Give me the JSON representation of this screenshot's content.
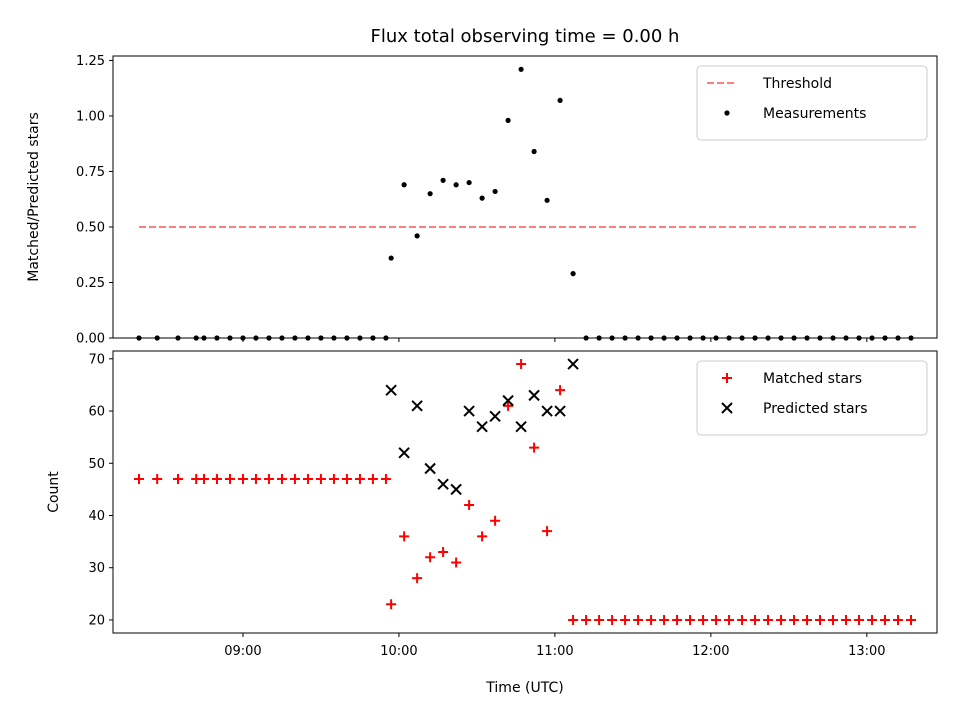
{
  "chart_data": {
    "title": "Flux total observing time = 0.00 h",
    "xlabel": "Time (UTC)",
    "x_ticks": [
      "09:00",
      "10:00",
      "11:00",
      "12:00",
      "13:00"
    ],
    "xlim": [
      "08:10",
      "13:27"
    ],
    "panels": [
      {
        "type": "scatter",
        "ylabel": "Matched/Predicted stars",
        "ylim": [
          0,
          1.27
        ],
        "y_ticks": [
          "0.00",
          "0.25",
          "0.50",
          "0.75",
          "1.00",
          "1.25"
        ],
        "legend_position": "top-right",
        "series": [
          {
            "name": "Threshold",
            "style": "dashed-line",
            "color": "#ff7f7f",
            "x": [
              "08:20",
              "13:20"
            ],
            "y": [
              0.5,
              0.5
            ]
          },
          {
            "name": "Measurements",
            "style": "dot",
            "color": "#000000",
            "x": [
              "08:20",
              "08:27",
              "08:35",
              "08:42",
              "08:45",
              "08:50",
              "08:55",
              "09:00",
              "09:05",
              "09:10",
              "09:15",
              "09:20",
              "09:25",
              "09:30",
              "09:35",
              "09:40",
              "09:45",
              "09:50",
              "09:55",
              "09:57",
              "10:02",
              "10:07",
              "10:12",
              "10:17",
              "10:22",
              "10:27",
              "10:32",
              "10:37",
              "10:42",
              "10:47",
              "10:52",
              "10:57",
              "11:02",
              "11:07",
              "11:12",
              "11:17",
              "11:22",
              "11:27",
              "11:32",
              "11:37",
              "11:42",
              "11:47",
              "11:52",
              "11:57",
              "12:02",
              "12:07",
              "12:12",
              "12:17",
              "12:22",
              "12:27",
              "12:32",
              "12:37",
              "12:42",
              "12:47",
              "12:52",
              "12:57",
              "13:02",
              "13:07",
              "13:12",
              "13:17"
            ],
            "y": [
              0,
              0,
              0,
              0,
              0,
              0,
              0,
              0,
              0,
              0,
              0,
              0,
              0,
              0,
              0,
              0,
              0,
              0,
              0,
              0.36,
              0.69,
              0.46,
              0.65,
              0.71,
              0.69,
              0.7,
              0.63,
              0.66,
              0.98,
              1.21,
              0.84,
              0.62,
              1.07,
              0.29,
              0,
              0,
              0,
              0,
              0,
              0,
              0,
              0,
              0,
              0,
              0,
              0,
              0,
              0,
              0,
              0,
              0,
              0,
              0,
              0,
              0,
              0,
              0,
              0,
              0,
              0
            ]
          }
        ]
      },
      {
        "type": "scatter",
        "ylabel": "Count",
        "ylim": [
          17.5,
          71.5
        ],
        "y_ticks": [
          "20",
          "30",
          "40",
          "50",
          "60",
          "70"
        ],
        "legend_position": "top-right",
        "series": [
          {
            "name": "Matched stars",
            "style": "plus",
            "color": "#ff0000",
            "x": [
              "08:20",
              "08:27",
              "08:35",
              "08:42",
              "08:45",
              "08:50",
              "08:55",
              "09:00",
              "09:05",
              "09:10",
              "09:15",
              "09:20",
              "09:25",
              "09:30",
              "09:35",
              "09:40",
              "09:45",
              "09:50",
              "09:55",
              "09:57",
              "10:02",
              "10:07",
              "10:12",
              "10:17",
              "10:22",
              "10:27",
              "10:32",
              "10:37",
              "10:42",
              "10:47",
              "10:52",
              "10:57",
              "11:02",
              "11:07",
              "11:12",
              "11:17",
              "11:22",
              "11:27",
              "11:32",
              "11:37",
              "11:42",
              "11:47",
              "11:52",
              "11:57",
              "12:02",
              "12:07",
              "12:12",
              "12:17",
              "12:22",
              "12:27",
              "12:32",
              "12:37",
              "12:42",
              "12:47",
              "12:52",
              "12:57",
              "13:02",
              "13:07",
              "13:12",
              "13:17"
            ],
            "y": [
              47,
              47,
              47,
              47,
              47,
              47,
              47,
              47,
              47,
              47,
              47,
              47,
              47,
              47,
              47,
              47,
              47,
              47,
              47,
              23,
              36,
              28,
              32,
              33,
              31,
              42,
              36,
              39,
              61,
              69,
              53,
              37,
              64,
              20,
              20,
              20,
              20,
              20,
              20,
              20,
              20,
              20,
              20,
              20,
              20,
              20,
              20,
              20,
              20,
              20,
              20,
              20,
              20,
              20,
              20,
              20,
              20,
              20,
              20,
              20
            ]
          },
          {
            "name": "Predicted stars",
            "style": "x",
            "color": "#000000",
            "x": [
              "09:57",
              "10:02",
              "10:07",
              "10:12",
              "10:17",
              "10:22",
              "10:27",
              "10:32",
              "10:37",
              "10:42",
              "10:47",
              "10:52",
              "10:57",
              "11:02",
              "11:07"
            ],
            "y": [
              64,
              52,
              61,
              49,
              46,
              45,
              60,
              57,
              59,
              62,
              57,
              63,
              60,
              60,
              69
            ]
          }
        ]
      }
    ]
  }
}
